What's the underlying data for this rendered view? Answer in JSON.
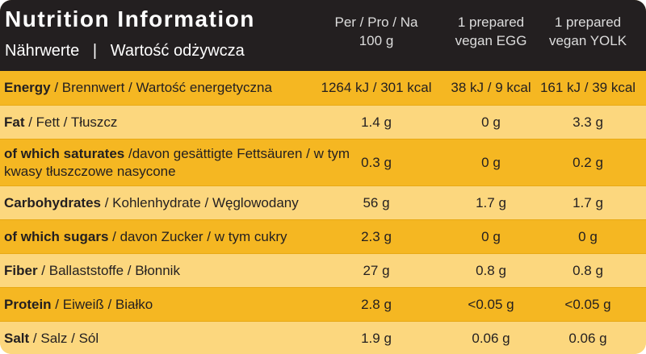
{
  "header": {
    "title": "Nutrition Information",
    "subtitle": "Nährwerte   |   Wartość odżywcza",
    "columns": [
      [
        "Per / Pro / Na",
        "100 g"
      ],
      [
        "1 prepared",
        "vegan EGG"
      ],
      [
        "1 prepared",
        "vegan YOLK"
      ]
    ]
  },
  "table": {
    "rows": [
      {
        "bold": "Energy",
        "rest": " / Brennwert / Wartość energetyczna",
        "values": [
          "1264 kJ / 301 kcal",
          "38 kJ / 9 kcal",
          "161 kJ / 39 kcal"
        ]
      },
      {
        "bold": "Fat",
        "rest": " / Fett / Tłuszcz",
        "values": [
          "1.4 g",
          "0 g",
          "3.3 g"
        ]
      },
      {
        "bold": "of which saturates",
        "rest": " /davon gesättigte Fettsäuren / w tym kwasy tłuszczowe nasycone",
        "values": [
          "0.3 g",
          "0 g",
          "0.2 g"
        ]
      },
      {
        "bold": "Carbohydrates",
        "rest": " / Kohlenhydrate / Węglowodany",
        "values": [
          "56 g",
          "1.7 g",
          "1.7 g"
        ]
      },
      {
        "bold": "of which sugars",
        "rest": " / davon Zucker / w tym cukry",
        "values": [
          "2.3 g",
          "0 g",
          "0 g"
        ]
      },
      {
        "bold": "Fiber",
        "rest": " / Ballaststoffe / Błonnik",
        "values": [
          "27 g",
          "0.8 g",
          "0.8 g"
        ]
      },
      {
        "bold": "Protein",
        "rest": " / Eiweiß / Białko",
        "values": [
          "2.8 g",
          "<0.05 g",
          "<0.05 g"
        ]
      },
      {
        "bold": "Salt",
        "rest": " / Salz / Sól",
        "values": [
          "1.9 g",
          "0.06 g",
          "0.06 g"
        ]
      }
    ]
  }
}
